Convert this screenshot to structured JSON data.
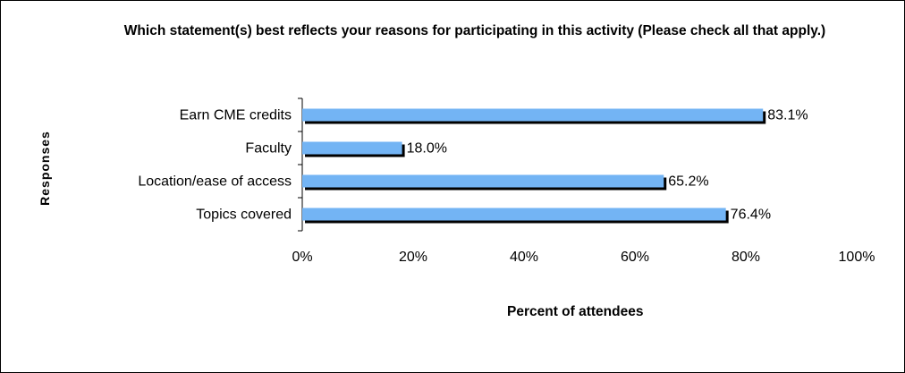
{
  "chart_data": {
    "type": "bar",
    "orientation": "horizontal",
    "title": "Which statement(s) best reflects your reasons for participating in this activity (Please check all that apply.)",
    "xlabel": "Percent of attendees",
    "ylabel": "Responses",
    "categories": [
      "Earn CME credits",
      "Faculty",
      "Location/ease of access",
      "Topics covered"
    ],
    "values": [
      83.1,
      18.0,
      65.2,
      76.4
    ],
    "data_labels": [
      "83.1%",
      "18.0%",
      "65.2%",
      "76.4%"
    ],
    "xlim": [
      0,
      100
    ],
    "xticks": [
      0,
      20,
      40,
      60,
      80,
      100
    ],
    "xtick_labels": [
      "0%",
      "20%",
      "40%",
      "60%",
      "80%",
      "100%"
    ],
    "grid": false,
    "legend": "none",
    "colors": {
      "bar": "#73b4f4",
      "bar_shadow": "#000000"
    }
  }
}
